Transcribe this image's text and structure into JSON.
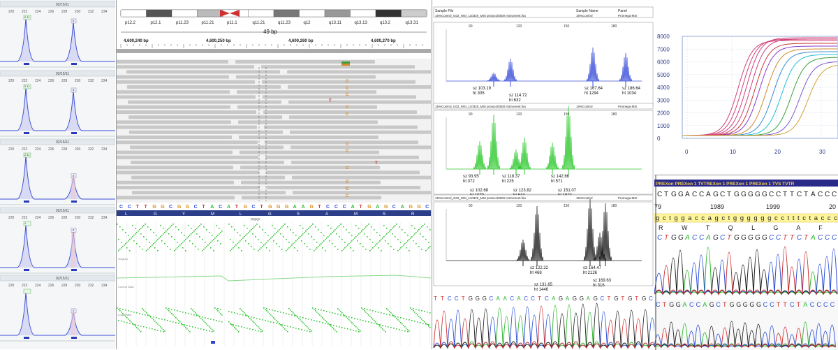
{
  "colors": {
    "peak_blue": "#3b4fd8",
    "peak_green": "#2ec92e",
    "trace_black": "#222222",
    "read_grey": "#c8c8c8",
    "mismatch_orange": "#d48a2a",
    "mismatch_red": "#d03030",
    "cnv_green": "#38c838",
    "amp_pink": "#d0407a"
  },
  "icons": {
    "peak_marker": "peak-marker-icon",
    "centromere": "centromere-icon"
  },
  "left_stack": {
    "panel_title": "02/15/11",
    "tick_labels": [
      "220",
      "222",
      "224",
      "226",
      "228",
      "230",
      "232",
      "234"
    ],
    "peak_labels": [
      [
        "2.11",
        "8"
      ],
      [
        "2.11",
        "8"
      ],
      [
        "2.11",
        "8"
      ],
      [
        "1",
        "8"
      ],
      [
        "",
        "4"
      ]
    ]
  },
  "genome_viewer": {
    "cytobands": [
      "p12.2",
      "p12.1",
      "p11.23",
      "p11.21",
      "p11.1",
      "q11.21",
      "q11.23",
      "q12",
      "q13.11",
      "q13.13",
      "q13.2",
      "q13.31"
    ],
    "span_label": "49 bp",
    "positions": [
      "4,600,240 bp",
      "4,600,250 bp",
      "4,600,260 bp",
      "4,600,270 bp"
    ],
    "sequence": "CCTTGGCGGCTACATGCTGGGAAGTCCCATGAGCAGGC",
    "amino_acids": [
      "L",
      "G",
      "Y",
      "M",
      "L",
      "G",
      "S",
      "A",
      "M",
      "S",
      "R"
    ],
    "coverage_track": "PRKP",
    "track_labels": [
      "Original",
      "Control Data",
      "Log2 Ratio"
    ],
    "mismatch_letters": [
      "C",
      "C",
      "C",
      "T",
      "C",
      "C",
      "C",
      "C",
      "C",
      "C",
      "T",
      "C",
      "C"
    ]
  },
  "capillary": {
    "header": {
      "col_sample_file": "Sample File",
      "col_sample_name": "Sample Name",
      "col_panel": "Panel",
      "row": "15%Control_G02_MSI_110320_MSI protocol3500 Instrument.fsa",
      "name": "15%Control",
      "panel": "Promega MSI"
    },
    "axis_ticks": [
      "90",
      "120",
      "150",
      "180"
    ],
    "panels": [
      {
        "labels": [
          [
            "sz 103.19",
            "ht 305"
          ],
          [
            "sz 114.72",
            "ht 632"
          ],
          [
            "sz 167.64",
            "ht 1294"
          ],
          [
            "sz 186.64",
            "ht 1034"
          ]
        ]
      },
      {
        "labels": [
          [
            "sz 93.95",
            "ht 372"
          ],
          [
            "sz 102.68",
            "ht 1070"
          ],
          [
            "sz 118.37",
            "ht 225"
          ],
          [
            "sz 123.82",
            "ht 644"
          ],
          [
            "sz 142.66",
            "ht 571"
          ],
          [
            "sz 151.07",
            "ht 1624"
          ]
        ]
      },
      {
        "labels": [
          [
            "sz 122.22",
            "ht 468"
          ],
          [
            "sz 131.65",
            "ht 1446"
          ],
          [
            "sz 164.47",
            "ht 2126"
          ],
          [
            "sz 169.63",
            "ht 316"
          ],
          [
            "sz 174.77",
            "ht 1561"
          ]
        ]
      }
    ],
    "bottom_sequence": "TTCCTGGGCAACACCTCAGAGGAGCTGTGTGC"
  },
  "amplification": {
    "y_ticks": [
      "8000",
      "7000",
      "6000",
      "5000",
      "4000",
      "3000",
      "2000",
      "1000",
      "0"
    ],
    "x_ticks": [
      "0",
      "10",
      "20",
      "30"
    ]
  },
  "sanger": {
    "exon_bar": "PREXon PREXon 1 TVTREXon 1 PREXon 1 PREXon 1 TVS TVTR",
    "sequence_top": "CTGGACCAGCTGGGGGCCTTCTACCCC",
    "positions": [
      "79",
      "1989",
      "1999",
      "20"
    ],
    "sequence_highlight": "gctggaccagctggggggcctttctaccc",
    "amino_acids": "R W T Q L G A F Y P",
    "sequence_colored": "CTGGACCAGCTGGGGGCCTTCTACCC",
    "sequence_bottom": "CTGGACCAGCTGGGGGCCTTCTACCCC"
  }
}
